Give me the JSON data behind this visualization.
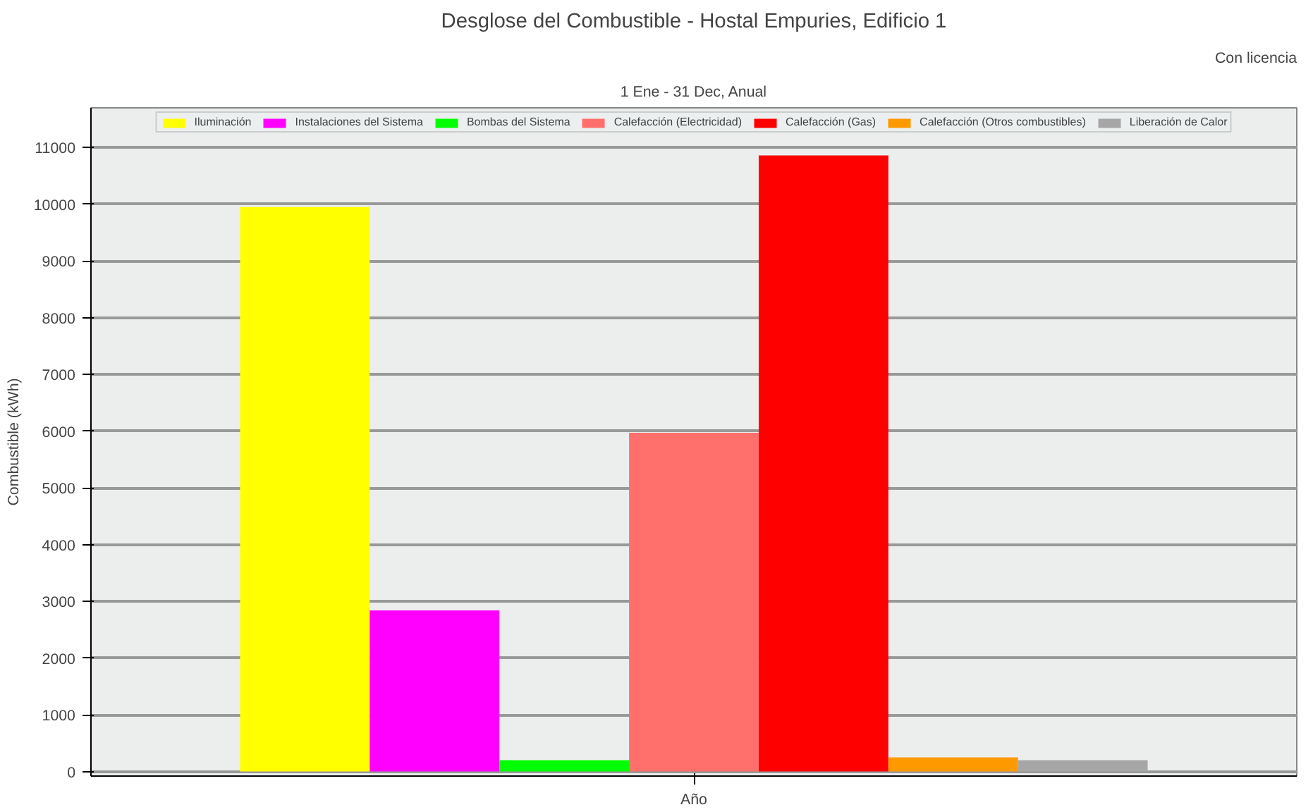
{
  "chart_data": {
    "type": "bar",
    "title": "Desglose del Combustible - Hostal Empuries, Edificio 1",
    "subtitle": "1 Ene - 31 Dec, Anual",
    "annotations": [
      "Con licencia"
    ],
    "ylabel": "Combustible (kWh)",
    "xlabel": null,
    "categories": [
      "Año"
    ],
    "series": [
      {
        "name": "Iluminación",
        "color": "#ffff00",
        "values": [
          9950
        ]
      },
      {
        "name": "Instalaciones del Sistema",
        "color": "#ff00ff",
        "values": [
          2840
        ]
      },
      {
        "name": "Bombas del Sistema",
        "color": "#00ff00",
        "values": [
          200
        ]
      },
      {
        "name": "Calefacción (Electricidad)",
        "color": "#ff6f6b",
        "values": [
          5970
        ]
      },
      {
        "name": "Calefacción (Gas)",
        "color": "#ff0000",
        "values": [
          10860
        ]
      },
      {
        "name": "Calefacción (Otros combustibles)",
        "color": "#ff9900",
        "values": [
          250
        ]
      },
      {
        "name": "Liberación de Calor",
        "color": "#a6a6a6",
        "values": [
          200
        ]
      }
    ],
    "ylim": [
      -80,
      11700
    ],
    "yticks": [
      0,
      1000,
      2000,
      3000,
      4000,
      5000,
      6000,
      7000,
      8000,
      9000,
      10000,
      11000
    ],
    "grid": "y",
    "legend": "top"
  }
}
